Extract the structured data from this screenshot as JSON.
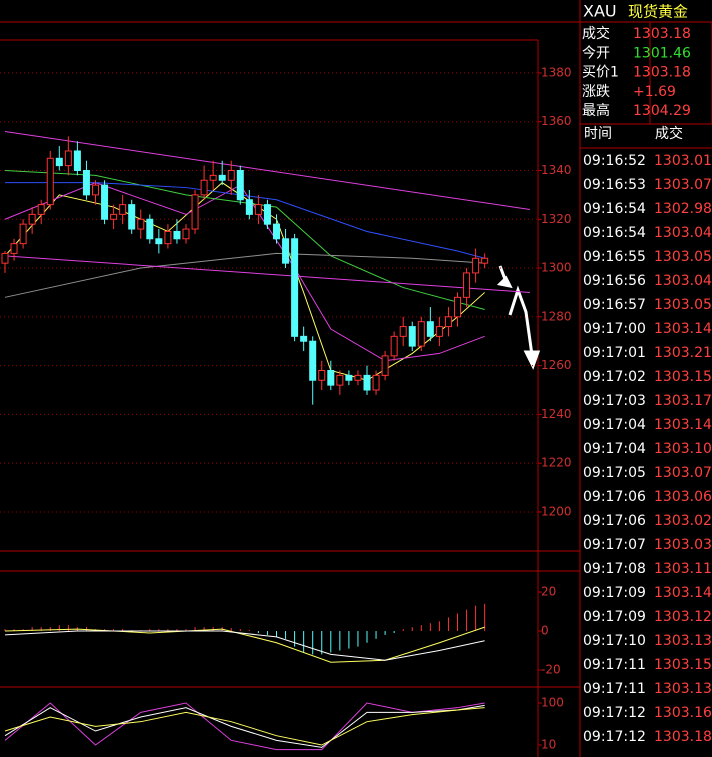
{
  "header": {
    "symbol": "XAU",
    "name": "现货黄金"
  },
  "quote": [
    {
      "label": "成交",
      "value": "1303.18",
      "color": "#ff4040"
    },
    {
      "label": "今开",
      "value": "1301.46",
      "color": "#30e030"
    },
    {
      "label": "买价1",
      "value": "1303.18",
      "color": "#ff4040"
    },
    {
      "label": "涨跌",
      "value": "+1.69",
      "color": "#ff4040"
    },
    {
      "label": "最高",
      "value": "1304.29",
      "color": "#ff4040"
    }
  ],
  "ticks_table": {
    "headers": [
      "时间",
      "成交"
    ],
    "rows": [
      [
        "09:16:52",
        "1303.01"
      ],
      [
        "09:16:53",
        "1303.07"
      ],
      [
        "09:16:54",
        "1302.98"
      ],
      [
        "09:16:54",
        "1303.04"
      ],
      [
        "09:16:55",
        "1303.05"
      ],
      [
        "09:16:56",
        "1303.04"
      ],
      [
        "09:16:57",
        "1303.05"
      ],
      [
        "09:17:00",
        "1303.14"
      ],
      [
        "09:17:01",
        "1303.21"
      ],
      [
        "09:17:02",
        "1303.15"
      ],
      [
        "09:17:03",
        "1303.17"
      ],
      [
        "09:17:04",
        "1303.14"
      ],
      [
        "09:17:04",
        "1303.10"
      ],
      [
        "09:17:05",
        "1303.07"
      ],
      [
        "09:17:06",
        "1303.06"
      ],
      [
        "09:17:06",
        "1303.02"
      ],
      [
        "09:17:07",
        "1303.03"
      ],
      [
        "09:17:08",
        "1303.11"
      ],
      [
        "09:17:09",
        "1303.14"
      ],
      [
        "09:17:09",
        "1303.12"
      ],
      [
        "09:17:10",
        "1303.13"
      ],
      [
        "09:17:11",
        "1303.15"
      ],
      [
        "09:17:11",
        "1303.13"
      ],
      [
        "09:17:12",
        "1303.16"
      ],
      [
        "09:17:12",
        "1303.18"
      ]
    ]
  },
  "chart_data": [
    {
      "type": "candlestick",
      "ylim": [
        1184.4,
        1393.5
      ],
      "yticks": [
        1200,
        1220,
        1240,
        1260,
        1280,
        1300,
        1320,
        1340,
        1360,
        1380
      ],
      "grid": true,
      "up_color": "#ff3232",
      "down_color": "#54fcfc",
      "ohlc": [
        [
          1302,
          1307,
          1298,
          1306
        ],
        [
          1306,
          1312,
          1303,
          1310
        ],
        [
          1310,
          1320,
          1308,
          1318
        ],
        [
          1318,
          1325,
          1314,
          1322
        ],
        [
          1322,
          1328,
          1318,
          1326
        ],
        [
          1326,
          1348,
          1324,
          1345
        ],
        [
          1345,
          1350,
          1340,
          1342
        ],
        [
          1342,
          1354,
          1338,
          1348
        ],
        [
          1348,
          1352,
          1338,
          1340
        ],
        [
          1340,
          1344,
          1328,
          1330
        ],
        [
          1330,
          1336,
          1326,
          1334
        ],
        [
          1334,
          1336,
          1318,
          1320
        ],
        [
          1320,
          1326,
          1316,
          1322
        ],
        [
          1322,
          1330,
          1318,
          1326
        ],
        [
          1326,
          1328,
          1314,
          1316
        ],
        [
          1316,
          1324,
          1312,
          1320
        ],
        [
          1320,
          1322,
          1310,
          1312
        ],
        [
          1312,
          1316,
          1306,
          1310
        ],
        [
          1310,
          1318,
          1308,
          1315
        ],
        [
          1315,
          1320,
          1310,
          1312
        ],
        [
          1312,
          1318,
          1310,
          1316
        ],
        [
          1316,
          1332,
          1314,
          1330
        ],
        [
          1330,
          1342,
          1328,
          1336
        ],
        [
          1336,
          1344,
          1332,
          1338
        ],
        [
          1338,
          1344,
          1334,
          1336
        ],
        [
          1336,
          1344,
          1330,
          1340
        ],
        [
          1340,
          1342,
          1326,
          1328
        ],
        [
          1328,
          1332,
          1320,
          1322
        ],
        [
          1322,
          1330,
          1318,
          1326
        ],
        [
          1326,
          1328,
          1316,
          1318
        ],
        [
          1318,
          1322,
          1310,
          1312
        ],
        [
          1312,
          1316,
          1300,
          1302
        ],
        [
          1312,
          1314,
          1270,
          1272
        ],
        [
          1272,
          1276,
          1266,
          1270
        ],
        [
          1270,
          1272,
          1244,
          1254
        ],
        [
          1254,
          1262,
          1250,
          1258
        ],
        [
          1258,
          1262,
          1250,
          1252
        ],
        [
          1252,
          1258,
          1248,
          1256
        ],
        [
          1256,
          1258,
          1252,
          1254
        ],
        [
          1254,
          1258,
          1252,
          1256
        ],
        [
          1256,
          1260,
          1248,
          1250
        ],
        [
          1250,
          1258,
          1248,
          1256
        ],
        [
          1256,
          1266,
          1254,
          1264
        ],
        [
          1264,
          1274,
          1262,
          1272
        ],
        [
          1272,
          1280,
          1268,
          1276
        ],
        [
          1276,
          1278,
          1266,
          1268
        ],
        [
          1268,
          1280,
          1266,
          1278
        ],
        [
          1278,
          1284,
          1270,
          1272
        ],
        [
          1272,
          1280,
          1268,
          1276
        ],
        [
          1276,
          1284,
          1272,
          1280
        ],
        [
          1280,
          1290,
          1276,
          1288
        ],
        [
          1288,
          1300,
          1284,
          1298
        ],
        [
          1298,
          1308,
          1294,
          1304
        ],
        [
          1302,
          1306,
          1300,
          1304
        ]
      ],
      "series": [
        {
          "color": "#ffff60",
          "x": [
            0,
            6,
            12,
            18,
            24,
            30,
            33,
            36,
            40,
            45,
            50,
            53
          ],
          "values": [
            1305,
            1330,
            1325,
            1315,
            1335,
            1320,
            1290,
            1258,
            1254,
            1265,
            1280,
            1290
          ]
        },
        {
          "color": "#e040e0",
          "x": [
            0,
            10,
            20,
            26,
            32,
            36,
            42,
            48,
            53
          ],
          "values": [
            1320,
            1335,
            1322,
            1334,
            1300,
            1275,
            1262,
            1265,
            1272
          ]
        },
        {
          "color": "#40d040",
          "x": [
            0,
            10,
            20,
            30,
            36,
            44,
            53
          ],
          "values": [
            1340,
            1338,
            1330,
            1325,
            1305,
            1292,
            1283
          ]
        },
        {
          "color": "#3050ff",
          "x": [
            0,
            10,
            20,
            30,
            40,
            50,
            53
          ],
          "values": [
            1335,
            1335,
            1333,
            1328,
            1315,
            1307,
            1304
          ]
        },
        {
          "color": "#909090",
          "x": [
            0,
            15,
            30,
            45,
            53
          ],
          "values": [
            1288,
            1300,
            1306,
            1304,
            1302
          ]
        },
        {
          "color": "#e040e0",
          "x": [
            0,
            58
          ],
          "values": [
            1356,
            1324
          ]
        },
        {
          "color": "#e040e0",
          "x": [
            0,
            58
          ],
          "values": [
            1305,
            1290
          ]
        }
      ]
    },
    {
      "type": "macd",
      "ylim": [
        -27.7,
        30.3
      ],
      "yticks": [
        20,
        0,
        -20
      ],
      "grid": false,
      "up_color": "#ff3232",
      "down_color": "#54fcfc",
      "histogram": [
        1,
        1,
        1,
        2,
        2,
        2,
        3,
        3,
        2,
        2,
        1,
        1,
        1,
        1,
        0.5,
        0.5,
        1,
        1,
        1,
        1,
        1,
        2,
        2,
        2,
        2,
        1.5,
        1,
        0.5,
        -1,
        -2,
        -3,
        -4,
        -8,
        -11,
        -12,
        -12,
        -11,
        -10,
        -9,
        -8,
        -6,
        -4,
        -2,
        -1,
        1,
        2,
        3,
        4,
        5,
        7,
        9,
        11,
        13,
        14
      ],
      "series": [
        {
          "color": "#ffff60",
          "x": [
            0,
            8,
            16,
            24,
            30,
            36,
            42,
            48,
            53
          ],
          "values": [
            0,
            1,
            -1,
            1,
            -6,
            -16,
            -15,
            -6,
            2
          ]
        },
        {
          "color": "#ffffff",
          "x": [
            0,
            8,
            16,
            24,
            30,
            36,
            42,
            48,
            53
          ],
          "values": [
            -2,
            0,
            0,
            0,
            -3,
            -12,
            -15,
            -10,
            -5
          ]
        }
      ]
    },
    {
      "type": "kdj",
      "ylim": [
        -15.7,
        127.9
      ],
      "yticks": [
        100,
        10
      ],
      "grid": false,
      "series": [
        {
          "color": "#e040e0",
          "x": [
            0,
            5,
            10,
            15,
            20,
            25,
            30,
            35,
            40,
            45,
            50,
            53
          ],
          "values": [
            20,
            100,
            10,
            80,
            100,
            20,
            0,
            0,
            100,
            80,
            90,
            100
          ]
        },
        {
          "color": "#ffffff",
          "x": [
            0,
            5,
            10,
            15,
            20,
            25,
            30,
            35,
            40,
            45,
            50,
            53
          ],
          "values": [
            30,
            90,
            40,
            70,
            90,
            50,
            20,
            5,
            80,
            80,
            85,
            95
          ]
        },
        {
          "color": "#ffff60",
          "x": [
            0,
            5,
            10,
            15,
            20,
            25,
            30,
            35,
            40,
            45,
            50,
            53
          ],
          "values": [
            40,
            70,
            50,
            60,
            80,
            60,
            30,
            10,
            60,
            75,
            85,
            90
          ]
        }
      ]
    }
  ]
}
